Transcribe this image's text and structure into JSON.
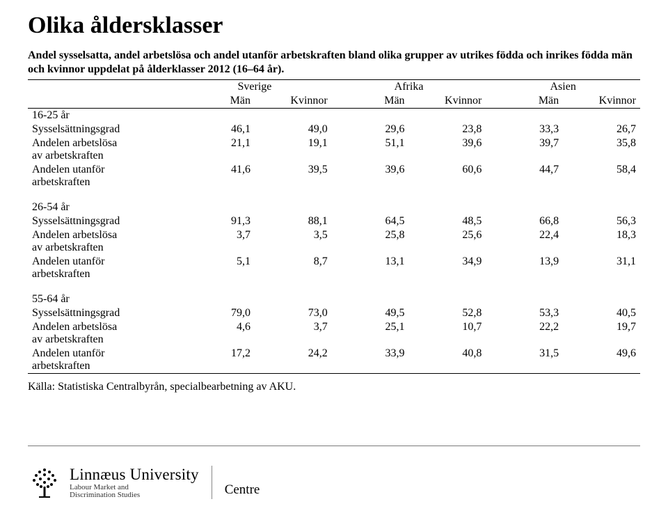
{
  "title": "Olika åldersklasser",
  "subtitle": "Andel sysselsatta, andel arbetslösa och andel utanför arbetskraften bland olika grupper av utrikes födda och inrikes födda män och kvinnor uppdelat på ålderklasser 2012 (16–64 år).",
  "regions": [
    "Sverige",
    "Afrika",
    "Asien"
  ],
  "sex_cols": [
    "Män",
    "Kvinnor",
    "Män",
    "Kvinnor",
    "Män",
    "Kvinnor"
  ],
  "groups": [
    {
      "label": "16-25 år",
      "rows": [
        {
          "label": "Sysselsättningsgrad",
          "vals": [
            "46,1",
            "49,0",
            "29,6",
            "23,8",
            "33,3",
            "26,7"
          ]
        },
        {
          "label": "Andelen arbetslösa",
          "label2": "av arbetskraften",
          "vals": [
            "21,1",
            "19,1",
            "51,1",
            "39,6",
            "39,7",
            "35,8"
          ]
        },
        {
          "label": "Andelen utanför",
          "label2": "arbetskraften",
          "vals": [
            "41,6",
            "39,5",
            "39,6",
            "60,6",
            "44,7",
            "58,4"
          ]
        }
      ]
    },
    {
      "label": "26-54 år",
      "rows": [
        {
          "label": "Sysselsättningsgrad",
          "vals": [
            "91,3",
            "88,1",
            "64,5",
            "48,5",
            "66,8",
            "56,3"
          ]
        },
        {
          "label": "Andelen arbetslösa",
          "label2": "av arbetskraften",
          "vals": [
            "3,7",
            "3,5",
            "25,8",
            "25,6",
            "22,4",
            "18,3"
          ]
        },
        {
          "label": "Andelen utanför",
          "label2": "arbetskraften",
          "vals": [
            "5,1",
            "8,7",
            "13,1",
            "34,9",
            "13,9",
            "31,1"
          ]
        }
      ]
    },
    {
      "label": "55-64 år",
      "rows": [
        {
          "label": "Sysselsättningsgrad",
          "vals": [
            "79,0",
            "73,0",
            "49,5",
            "52,8",
            "53,3",
            "40,5"
          ]
        },
        {
          "label": "Andelen arbetslösa",
          "label2": "av arbetskraften",
          "vals": [
            "4,6",
            "3,7",
            "25,1",
            "10,7",
            "22,2",
            "19,7"
          ]
        },
        {
          "label": "Andelen utanför",
          "label2": "arbetskraften",
          "vals": [
            "17,2",
            "24,2",
            "33,9",
            "40,8",
            "31,5",
            "49,6"
          ]
        }
      ]
    }
  ],
  "source": "Källa: Statistiska Centralbyrån, specialbearbetning av AKU.",
  "footer": {
    "uni": "Linnæus University",
    "sub": "Labour Market and\nDiscrimination Studies",
    "centre": "Centre"
  },
  "style": {
    "text_color": "#000000",
    "background": "#ffffff",
    "rule_color": "#7a7a7a",
    "title_fontsize": 34,
    "body_fontsize": 16,
    "table_border_color": "#000000",
    "col_label_width": 200,
    "col_val_width": 103
  }
}
